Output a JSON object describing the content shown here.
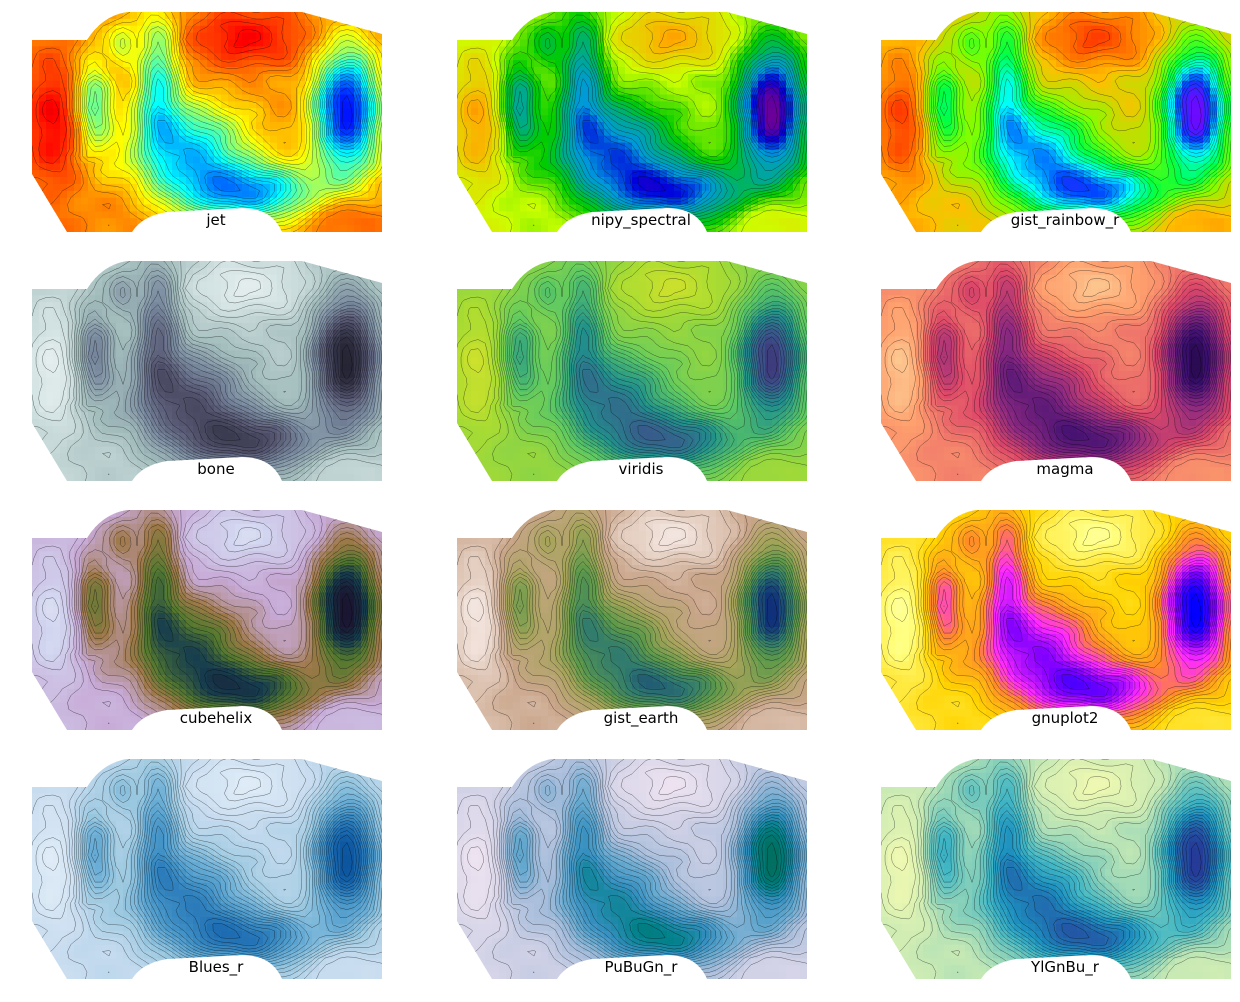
{
  "chart_data": {
    "type": "heatmap",
    "title": "",
    "contours": true,
    "grid": false,
    "axes_visible": false,
    "layout": {
      "rows": 4,
      "columns": 3
    },
    "panels": [
      {
        "label": "jet"
      },
      {
        "label": "nipy_spectral"
      },
      {
        "label": "gist_rainbow_r"
      },
      {
        "label": "bone"
      },
      {
        "label": "viridis"
      },
      {
        "label": "magma"
      },
      {
        "label": "cubehelix"
      },
      {
        "label": "gist_earth"
      },
      {
        "label": "gnuplot2"
      },
      {
        "label": "Blues_r"
      },
      {
        "label": "PuBuGn_r"
      },
      {
        "label": "YlGnBu_r"
      }
    ]
  },
  "colormaps": {
    "jet": [
      "#00007f",
      "#0000ff",
      "#007fff",
      "#00ffff",
      "#7fff7f",
      "#ffff00",
      "#ff7f00",
      "#ff0000",
      "#7f0000"
    ],
    "nipy_spectral": [
      "#000000",
      "#7d008c",
      "#0000dd",
      "#0099dd",
      "#00aa88",
      "#00cc00",
      "#ccff00",
      "#ffaa00",
      "#dd0000"
    ],
    "gist_rainbow_r": [
      "#ff00bf",
      "#8000ff",
      "#0040ff",
      "#00ffff",
      "#00ff40",
      "#80ff00",
      "#ffbf00",
      "#ff4000",
      "#ff0029"
    ],
    "bone": [
      "#000000",
      "#2b2b3d",
      "#555570",
      "#7a8ba0",
      "#a2bcbc",
      "#d8e6e6",
      "#ffffff"
    ],
    "viridis": [
      "#440154",
      "#3b528b",
      "#21918c",
      "#5ec962",
      "#aadc32",
      "#fde725"
    ],
    "magma": [
      "#000004",
      "#3b0f70",
      "#8c2981",
      "#de4968",
      "#fe9f6d",
      "#fcfdbf"
    ],
    "cubehelix": [
      "#000000",
      "#1a1530",
      "#163d4e",
      "#54792f",
      "#a07949",
      "#c7a9d6",
      "#d2d6f0",
      "#ffffff"
    ],
    "gist_earth": [
      "#000000",
      "#0f2f7a",
      "#2f7a6f",
      "#5e9a4a",
      "#a6a45a",
      "#c9a58a",
      "#f0e0d8",
      "#fdfbfb"
    ],
    "gnuplot2": [
      "#000000",
      "#0000ff",
      "#7f00ff",
      "#ff2aff",
      "#ff8a2a",
      "#ffd400",
      "#ffff80",
      "#ffffff"
    ],
    "Blues_r": [
      "#08306b",
      "#08519c",
      "#2171b5",
      "#4292c6",
      "#6baed6",
      "#9ecae1",
      "#c6dbef",
      "#deebf7",
      "#f7fbff"
    ],
    "PuBuGn_r": [
      "#014636",
      "#016c59",
      "#02818a",
      "#3690c0",
      "#67a9cf",
      "#a6bddb",
      "#d0d1e6",
      "#ece2f0",
      "#fff7fb"
    ],
    "YlGnBu_r": [
      "#081d58",
      "#253494",
      "#225ea8",
      "#1d91c0",
      "#41b6c4",
      "#7fcdbb",
      "#c7e9b4",
      "#edf8b1",
      "#ffffd9"
    ]
  }
}
